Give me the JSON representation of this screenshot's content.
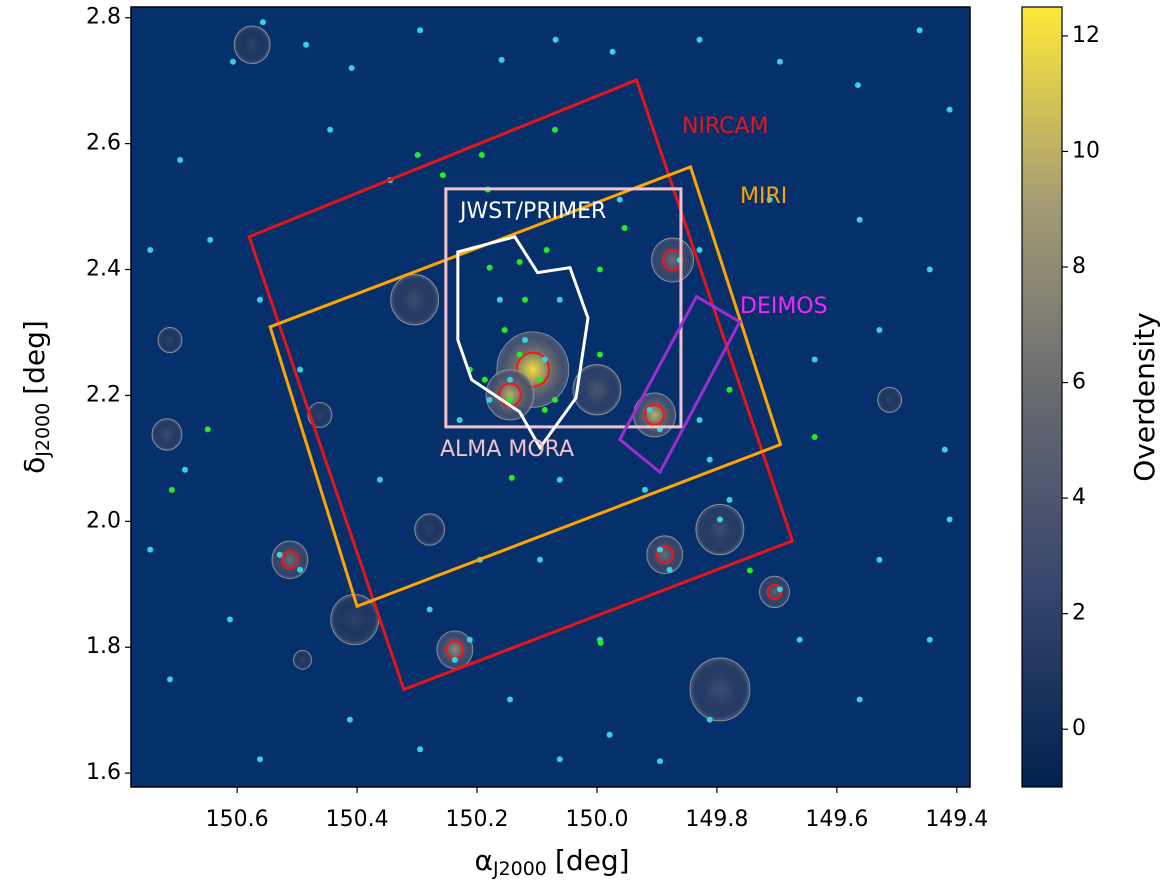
{
  "chart_data": {
    "type": "scatter",
    "xlabel": {
      "symbol": "α",
      "subscript": "J2000",
      "unit": "[deg]"
    },
    "ylabel": {
      "symbol": "δ",
      "subscript": "J2000",
      "unit": "[deg]"
    },
    "xlim": [
      150.777,
      149.378
    ],
    "ylim": [
      1.578,
      2.817
    ],
    "xticks": [
      150.6,
      150.4,
      150.2,
      {
        "value": 150.0,
        "label": "150.0"
      },
      149.8,
      149.6,
      149.4
    ],
    "yticks": [
      1.6,
      1.8,
      {
        "value": 2.0,
        "label": "2.0"
      },
      2.2,
      2.4,
      2.6,
      2.8
    ],
    "series": [
      {
        "color": "#35d3de",
        "x": [
          150.557,
          150.607,
          150.485,
          150.409,
          150.295,
          150.159,
          150.069,
          149.974,
          149.829,
          149.695,
          149.565,
          149.462,
          149.412,
          150.695,
          150.745,
          150.645,
          150.445,
          150.345,
          149.712,
          149.562,
          149.445,
          149.637,
          149.529,
          149.42,
          150.687,
          150.745,
          150.612,
          150.712,
          150.562,
          150.412,
          150.295,
          150.145,
          150.062,
          149.979,
          149.895,
          149.812,
          149.662,
          149.562,
          149.445,
          149.412,
          149.529,
          149.995,
          150.095,
          150.195,
          150.362,
          150.495,
          150.562,
          150.062,
          150.162,
          149.962,
          149.829,
          149.812,
          149.92,
          150.062,
          150.229,
          150.279,
          150.237,
          150.212,
          149.895,
          149.879,
          150.529,
          150.495,
          149.695,
          149.795,
          149.779,
          150.12,
          150.087,
          150.145,
          150.179,
          149.912,
          149.895,
          149.862,
          149.829
        ],
        "y": [
          2.793,
          2.73,
          2.757,
          2.72,
          2.78,
          2.733,
          2.765,
          2.746,
          2.765,
          2.73,
          2.693,
          2.78,
          2.654,
          2.574,
          2.431,
          2.447,
          2.622,
          2.542,
          2.511,
          2.479,
          2.4,
          2.257,
          2.304,
          2.114,
          2.082,
          1.955,
          1.844,
          1.749,
          1.622,
          1.685,
          1.638,
          1.717,
          1.622,
          1.661,
          1.619,
          1.685,
          1.812,
          1.717,
          1.812,
          2.003,
          1.939,
          1.812,
          1.939,
          1.939,
          2.066,
          2.241,
          2.352,
          2.352,
          2.352,
          2.511,
          2.161,
          2.098,
          2.05,
          2.066,
          2.161,
          1.86,
          1.78,
          1.812,
          1.955,
          1.923,
          1.947,
          1.923,
          1.892,
          2.003,
          2.034,
          2.288,
          2.257,
          2.225,
          2.193,
          2.177,
          2.146,
          2.415,
          2.431
        ]
      },
      {
        "color": "#22ee22",
        "x": [
          150.07,
          150.299,
          150.192,
          150.257,
          150.182,
          149.954,
          150.084,
          150.129,
          150.179,
          149.995,
          150.12,
          150.154,
          150.129,
          150.095,
          150.07,
          150.145,
          150.187,
          150.212,
          150.087,
          149.995,
          149.779,
          150.649,
          150.709,
          150.142,
          149.745,
          149.637,
          149.994
        ],
        "y": [
          2.622,
          2.582,
          2.582,
          2.55,
          2.527,
          2.466,
          2.431,
          2.412,
          2.403,
          2.4,
          2.352,
          2.304,
          2.265,
          2.225,
          2.193,
          2.193,
          2.225,
          2.241,
          2.177,
          2.265,
          2.209,
          2.146,
          2.05,
          2.069,
          1.922,
          2.134,
          1.807
        ]
      }
    ],
    "overdensity": {
      "ra": [
        150.107,
        150.145,
        149.904,
        150.237,
        150.512,
        149.887,
        149.704,
        149.874,
        149.795,
        149.795,
        150.304,
        150.575,
        150.717,
        149.512,
        150.404,
        150.0,
        150.712,
        150.462,
        150.279,
        150.491
      ],
      "dec": [
        2.241,
        2.201,
        2.169,
        1.796,
        1.939,
        1.947,
        1.888,
        2.415,
        1.987,
        1.733,
        2.352,
        2.757,
        2.138,
        2.193,
        1.844,
        2.209,
        2.288,
        2.169,
        1.987,
        1.78
      ],
      "values": [
        12,
        10,
        10,
        8,
        6,
        6,
        5,
        6,
        3,
        3,
        3,
        2,
        3,
        2,
        2,
        4,
        2,
        2,
        2,
        2
      ],
      "size": [
        0.06,
        0.04,
        0.035,
        0.03,
        0.03,
        0.03,
        0.025,
        0.035,
        0.04,
        0.05,
        0.04,
        0.03,
        0.025,
        0.02,
        0.04,
        0.04,
        0.02,
        0.02,
        0.025,
        0.015
      ]
    },
    "regions": [
      {
        "label": "NIRCAM",
        "color": "#e8141a",
        "label_color": "#e8141a",
        "ra": [
          150.58,
          149.934,
          149.674,
          150.322
        ],
        "dec": [
          2.452,
          2.701,
          1.969,
          1.733
        ]
      },
      {
        "label": "MIRI",
        "color": "#ffa500",
        "label_color": "#ffa500",
        "ra": [
          150.545,
          149.844,
          149.694,
          150.4
        ],
        "dec": [
          2.309,
          2.563,
          2.122,
          1.865
        ]
      },
      {
        "label": "ALMA MORA",
        "color": "#f4c2cc",
        "label_color": "#f4c2cc",
        "ra": [
          150.252,
          149.86,
          149.86,
          150.252
        ],
        "dec": [
          2.528,
          2.528,
          2.15,
          2.15
        ]
      },
      {
        "label": "JWST/PRIMER",
        "color": "#ffffff",
        "label_color": "#ffffff",
        "ra": [
          150.232,
          150.137,
          150.099,
          150.045,
          150.015,
          150.035,
          150.095,
          150.129,
          150.209,
          150.232
        ],
        "dec": [
          2.428,
          2.452,
          2.395,
          2.403,
          2.323,
          2.196,
          2.117,
          2.174,
          2.225,
          2.288
        ]
      },
      {
        "label": "DEIMOS",
        "color": "#9b2fd0",
        "label_color": "#ff22ff",
        "ra": [
          149.962,
          149.834,
          149.762,
          149.895
        ],
        "dec": [
          2.13,
          2.357,
          2.317,
          2.078
        ]
      }
    ],
    "colorbar": {
      "label": "Overdensity",
      "lim": [
        -1,
        12.5
      ],
      "ticks": [
        0,
        2,
        4,
        6,
        8,
        10,
        12
      ]
    }
  }
}
